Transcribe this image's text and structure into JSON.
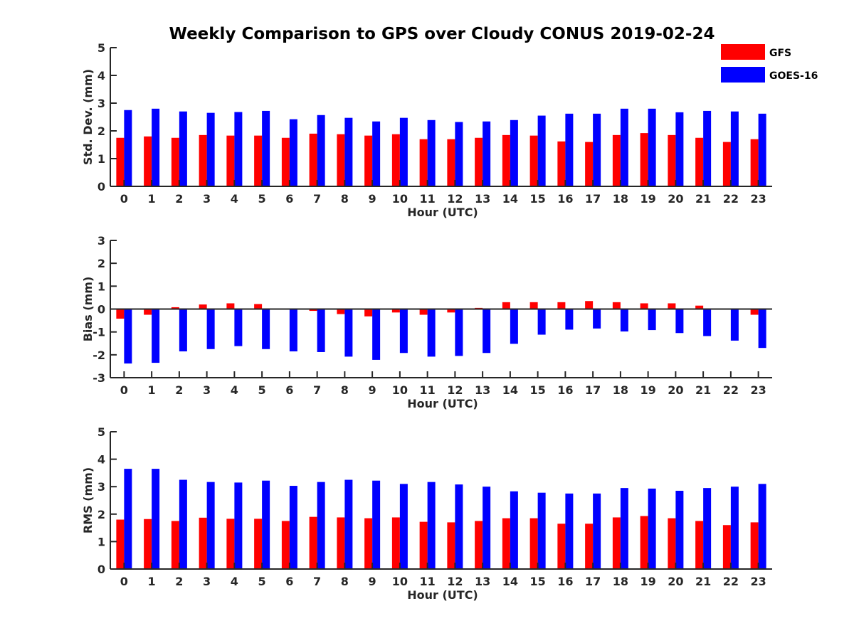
{
  "chart_data": {
    "type": "bar",
    "title": "Weekly Comparison to GPS over Cloudy CONUS 2019-02-24",
    "legend": {
      "placement": "top-right",
      "entries": [
        {
          "name": "GFS",
          "color": "#ff0000"
        },
        {
          "name": "GOES-16",
          "color": "#0000ff"
        }
      ]
    },
    "categories": [
      "0",
      "1",
      "2",
      "3",
      "4",
      "5",
      "6",
      "7",
      "8",
      "9",
      "10",
      "11",
      "12",
      "13",
      "14",
      "15",
      "16",
      "17",
      "18",
      "19",
      "20",
      "21",
      "22",
      "23"
    ],
    "panels": [
      {
        "xlabel": "Hour (UTC)",
        "ylabel": "Std. Dev. (mm)",
        "ylim": [
          0,
          5
        ],
        "yticks": [
          "0",
          "1",
          "2",
          "3",
          "4",
          "5"
        ],
        "series": [
          {
            "name": "GFS",
            "color": "#ff0000",
            "values": [
              1.75,
              1.8,
              1.75,
              1.85,
              1.83,
              1.83,
              1.75,
              1.9,
              1.88,
              1.83,
              1.88,
              1.7,
              1.7,
              1.75,
              1.85,
              1.83,
              1.62,
              1.6,
              1.85,
              1.92,
              1.85,
              1.75,
              1.6,
              1.7
            ]
          },
          {
            "name": "GOES-16",
            "color": "#0000ff",
            "values": [
              2.75,
              2.8,
              2.7,
              2.65,
              2.68,
              2.72,
              2.42,
              2.57,
              2.47,
              2.34,
              2.47,
              2.39,
              2.32,
              2.34,
              2.39,
              2.55,
              2.62,
              2.62,
              2.8,
              2.8,
              2.67,
              2.72,
              2.7,
              2.62
            ]
          }
        ]
      },
      {
        "xlabel": "Hour (UTC)",
        "ylabel": "Bias (mm)",
        "ylim": [
          -3,
          3
        ],
        "yticks": [
          "-3",
          "-2",
          "-1",
          "0",
          "1",
          "2",
          "3"
        ],
        "series": [
          {
            "name": "GFS",
            "color": "#ff0000",
            "values": [
              -0.42,
              -0.25,
              0.08,
              0.2,
              0.25,
              0.22,
              0.0,
              -0.08,
              -0.22,
              -0.32,
              -0.15,
              -0.25,
              -0.15,
              0.05,
              0.3,
              0.3,
              0.3,
              0.35,
              0.3,
              0.25,
              0.25,
              0.15,
              -0.03,
              -0.25
            ]
          },
          {
            "name": "GOES-16",
            "color": "#0000ff",
            "values": [
              -2.38,
              -2.35,
              -1.85,
              -1.75,
              -1.62,
              -1.75,
              -1.85,
              -1.88,
              -2.08,
              -2.22,
              -1.92,
              -2.08,
              -2.05,
              -1.92,
              -1.52,
              -1.12,
              -0.9,
              -0.85,
              -0.98,
              -0.92,
              -1.05,
              -1.18,
              -1.38,
              -1.7
            ]
          }
        ]
      },
      {
        "xlabel": "Hour (UTC)",
        "ylabel": "RMS (mm)",
        "ylim": [
          0,
          5
        ],
        "yticks": [
          "0",
          "1",
          "2",
          "3",
          "4",
          "5"
        ],
        "series": [
          {
            "name": "GFS",
            "color": "#ff0000",
            "values": [
              1.8,
              1.82,
              1.75,
              1.87,
              1.83,
              1.83,
              1.75,
              1.9,
              1.88,
              1.85,
              1.88,
              1.72,
              1.7,
              1.75,
              1.85,
              1.85,
              1.65,
              1.65,
              1.88,
              1.93,
              1.85,
              1.75,
              1.6,
              1.7
            ]
          },
          {
            "name": "GOES-16",
            "color": "#0000ff",
            "values": [
              3.65,
              3.65,
              3.25,
              3.17,
              3.15,
              3.22,
              3.03,
              3.17,
              3.25,
              3.22,
              3.1,
              3.17,
              3.08,
              3.0,
              2.83,
              2.78,
              2.75,
              2.75,
              2.95,
              2.93,
              2.85,
              2.95,
              3.0,
              3.1
            ]
          }
        ]
      }
    ],
    "grid": false
  }
}
